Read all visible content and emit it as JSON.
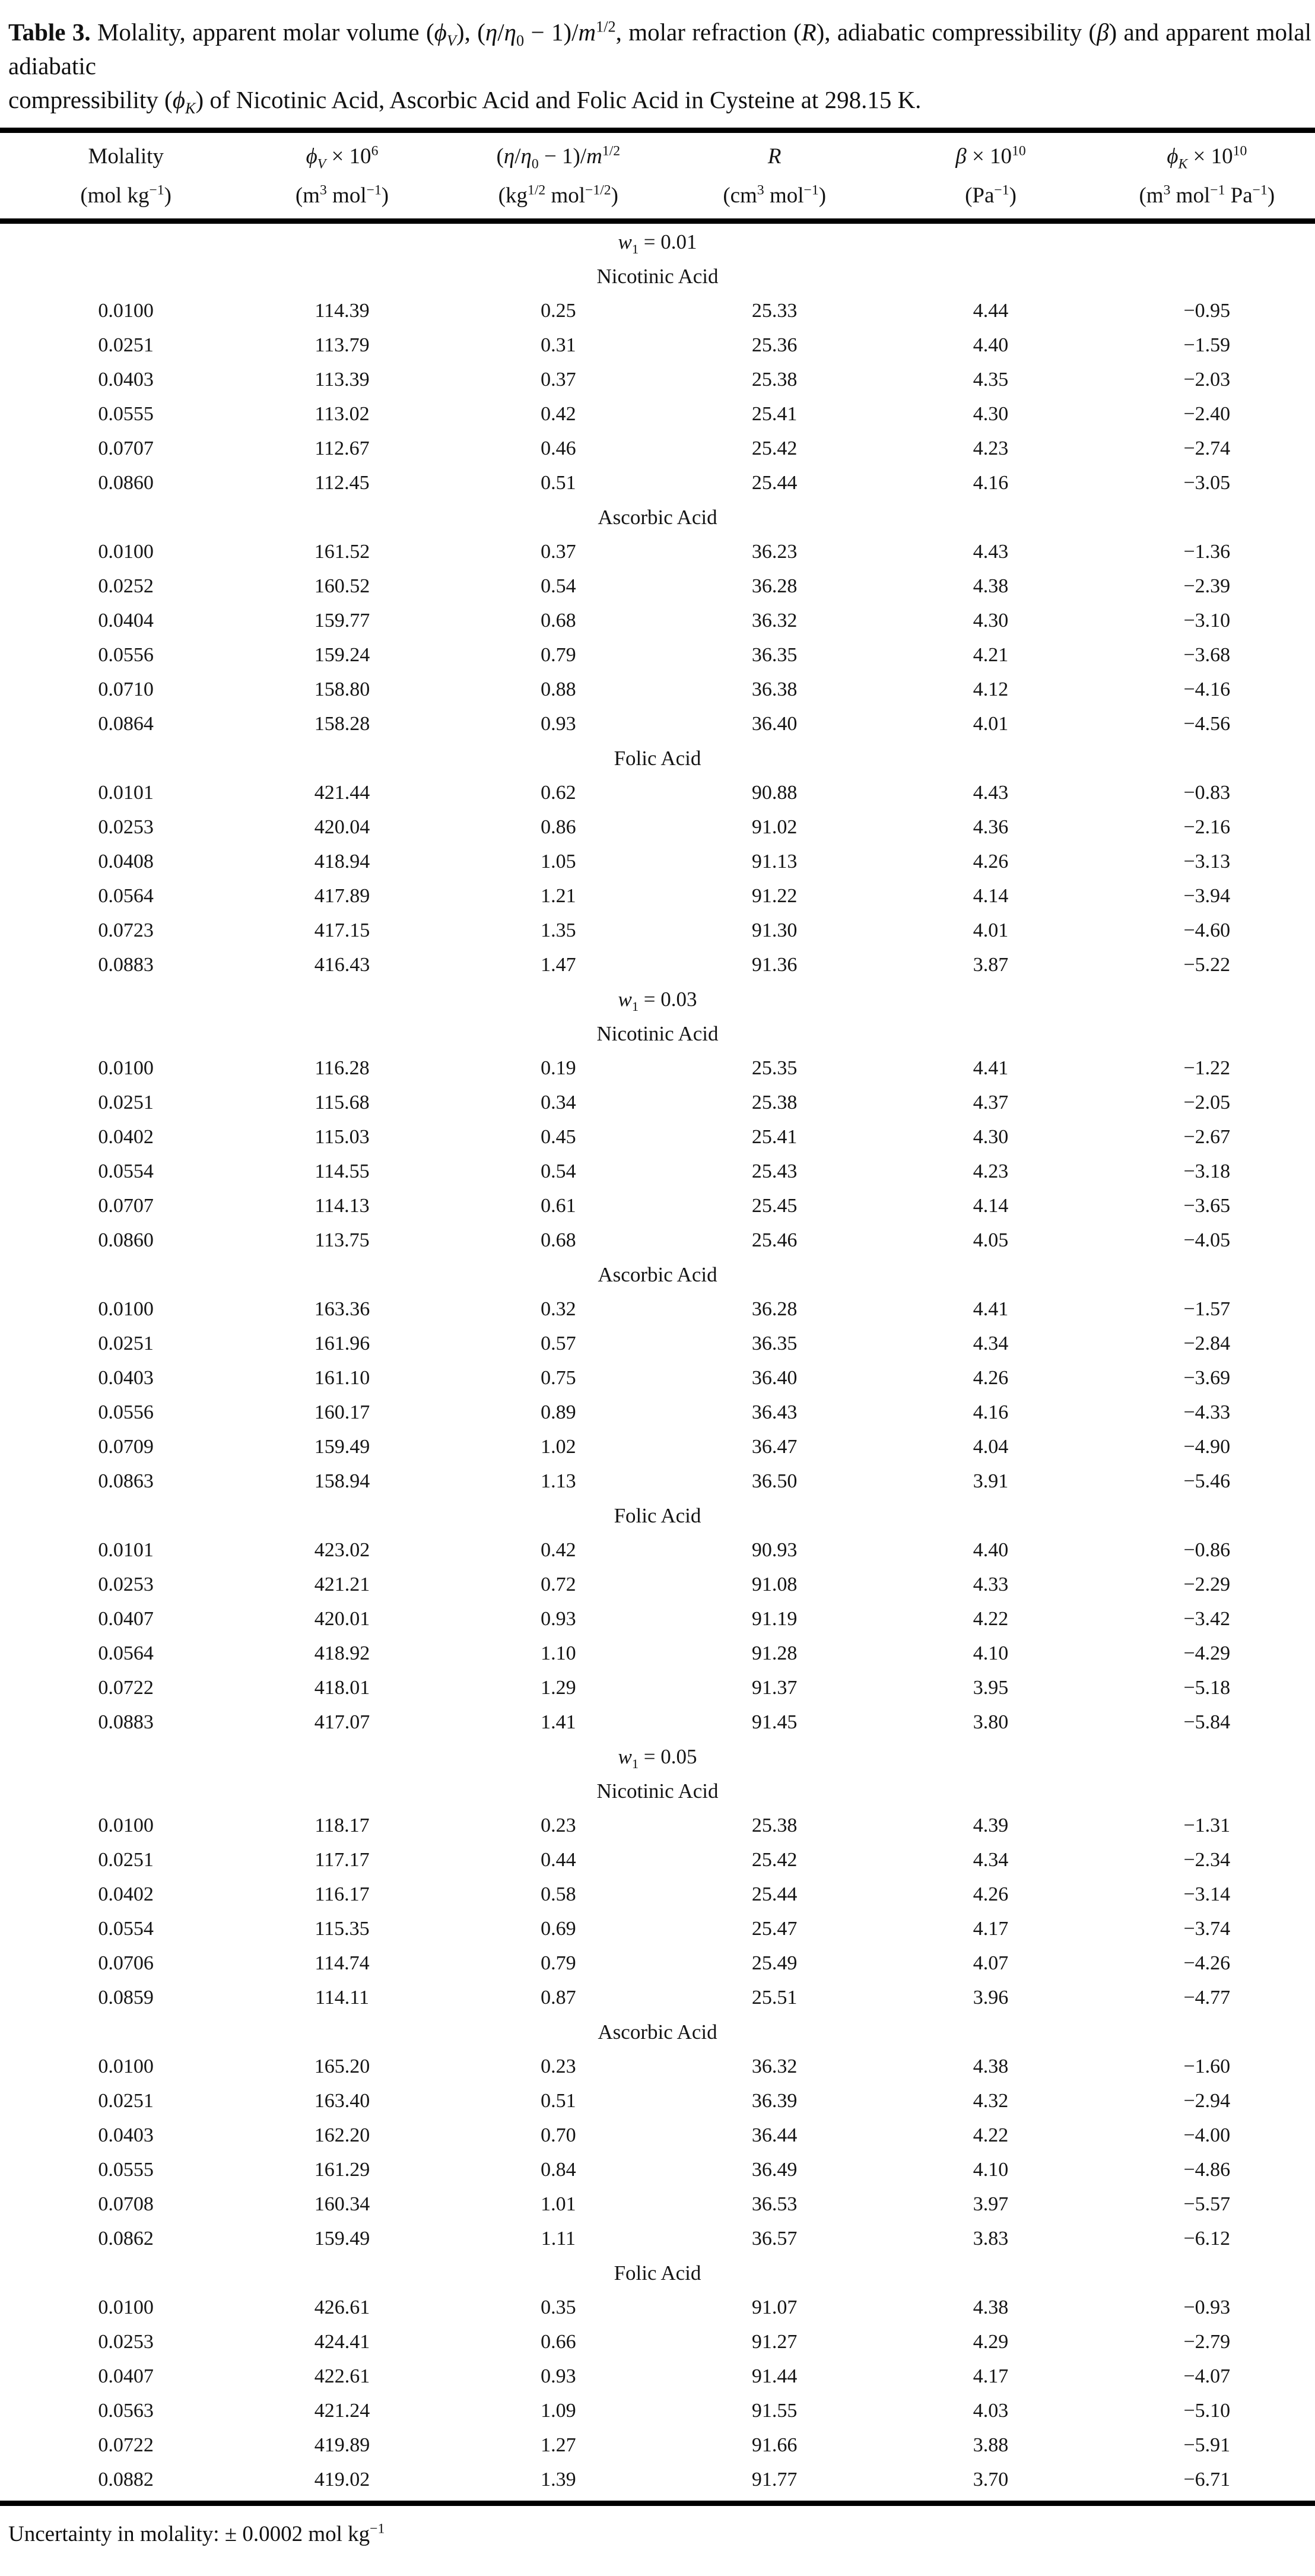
{
  "page": {
    "title_line1_html": "<b>Table 3.</b> Molality, apparent molar volume (<i>ϕ<sub>V</sub></i>), (<i>η</i>/<i>η</i><sub>0</sub> − 1)/<i>m</i><sup>1/2</sup>, molar refraction (<i>R</i>), adiabatic compressibility (<i>β</i>) and apparent molal adiabatic",
    "title_line2_html": "compressibility (<i>ϕ<sub>K</sub></i>) of Nicotinic Acid, Ascorbic Acid and Folic Acid in Cysteine at 298.15 K.",
    "footer_html": "Uncertainty in molality: ± 0.0002 mol kg<sup>−1</sup>"
  },
  "columns": [
    {
      "name_html": "Molality",
      "unit_html": "(mol kg<sup>−1</sup>)"
    },
    {
      "name_html": "<i>ϕ<sub>V</sub></i> × 10<sup>6</sup>",
      "unit_html": "(m<sup>3</sup> mol<sup>−1</sup>)"
    },
    {
      "name_html": "(<i>η</i>/<i>η</i><sub>0</sub> − 1)/<i>m</i><sup>1/2</sup>",
      "unit_html": "(kg<sup>1/2</sup> mol<sup>−1/2</sup>)"
    },
    {
      "name_html": "<i>R</i>",
      "unit_html": "(cm<sup>3</sup> mol<sup>−1</sup>)"
    },
    {
      "name_html": "<i>β</i> × 10<sup>10</sup>",
      "unit_html": "(Pa<sup>−1</sup>)"
    },
    {
      "name_html": "<i>ϕ<sub>K</sub></i> × 10<sup>10</sup>",
      "unit_html": "(m<sup>3</sup> mol<sup>−1</sup> Pa<sup>−1</sup>)"
    }
  ],
  "sections": [
    {
      "w_label_html": "<i>w</i><sub>1</sub> = 0.01",
      "groups": [
        {
          "name": "Nicotinic Acid",
          "rows": [
            [
              "0.0100",
              "114.39",
              "0.25",
              "25.33",
              "4.44",
              "−0.95"
            ],
            [
              "0.0251",
              "113.79",
              "0.31",
              "25.36",
              "4.40",
              "−1.59"
            ],
            [
              "0.0403",
              "113.39",
              "0.37",
              "25.38",
              "4.35",
              "−2.03"
            ],
            [
              "0.0555",
              "113.02",
              "0.42",
              "25.41",
              "4.30",
              "−2.40"
            ],
            [
              "0.0707",
              "112.67",
              "0.46",
              "25.42",
              "4.23",
              "−2.74"
            ],
            [
              "0.0860",
              "112.45",
              "0.51",
              "25.44",
              "4.16",
              "−3.05"
            ]
          ]
        },
        {
          "name": "Ascorbic Acid",
          "rows": [
            [
              "0.0100",
              "161.52",
              "0.37",
              "36.23",
              "4.43",
              "−1.36"
            ],
            [
              "0.0252",
              "160.52",
              "0.54",
              "36.28",
              "4.38",
              "−2.39"
            ],
            [
              "0.0404",
              "159.77",
              "0.68",
              "36.32",
              "4.30",
              "−3.10"
            ],
            [
              "0.0556",
              "159.24",
              "0.79",
              "36.35",
              "4.21",
              "−3.68"
            ],
            [
              "0.0710",
              "158.80",
              "0.88",
              "36.38",
              "4.12",
              "−4.16"
            ],
            [
              "0.0864",
              "158.28",
              "0.93",
              "36.40",
              "4.01",
              "−4.56"
            ]
          ]
        },
        {
          "name": "Folic Acid",
          "rows": [
            [
              "0.0101",
              "421.44",
              "0.62",
              "90.88",
              "4.43",
              "−0.83"
            ],
            [
              "0.0253",
              "420.04",
              "0.86",
              "91.02",
              "4.36",
              "−2.16"
            ],
            [
              "0.0408",
              "418.94",
              "1.05",
              "91.13",
              "4.26",
              "−3.13"
            ],
            [
              "0.0564",
              "417.89",
              "1.21",
              "91.22",
              "4.14",
              "−3.94"
            ],
            [
              "0.0723",
              "417.15",
              "1.35",
              "91.30",
              "4.01",
              "−4.60"
            ],
            [
              "0.0883",
              "416.43",
              "1.47",
              "91.36",
              "3.87",
              "−5.22"
            ]
          ]
        }
      ]
    },
    {
      "w_label_html": "<i>w</i><sub>1</sub> = 0.03",
      "groups": [
        {
          "name": "Nicotinic Acid",
          "rows": [
            [
              "0.0100",
              "116.28",
              "0.19",
              "25.35",
              "4.41",
              "−1.22"
            ],
            [
              "0.0251",
              "115.68",
              "0.34",
              "25.38",
              "4.37",
              "−2.05"
            ],
            [
              "0.0402",
              "115.03",
              "0.45",
              "25.41",
              "4.30",
              "−2.67"
            ],
            [
              "0.0554",
              "114.55",
              "0.54",
              "25.43",
              "4.23",
              "−3.18"
            ],
            [
              "0.0707",
              "114.13",
              "0.61",
              "25.45",
              "4.14",
              "−3.65"
            ],
            [
              "0.0860",
              "113.75",
              "0.68",
              "25.46",
              "4.05",
              "−4.05"
            ]
          ]
        },
        {
          "name": "Ascorbic Acid",
          "rows": [
            [
              "0.0100",
              "163.36",
              "0.32",
              "36.28",
              "4.41",
              "−1.57"
            ],
            [
              "0.0251",
              "161.96",
              "0.57",
              "36.35",
              "4.34",
              "−2.84"
            ],
            [
              "0.0403",
              "161.10",
              "0.75",
              "36.40",
              "4.26",
              "−3.69"
            ],
            [
              "0.0556",
              "160.17",
              "0.89",
              "36.43",
              "4.16",
              "−4.33"
            ],
            [
              "0.0709",
              "159.49",
              "1.02",
              "36.47",
              "4.04",
              "−4.90"
            ],
            [
              "0.0863",
              "158.94",
              "1.13",
              "36.50",
              "3.91",
              "−5.46"
            ]
          ]
        },
        {
          "name": "Folic Acid",
          "rows": [
            [
              "0.0101",
              "423.02",
              "0.42",
              "90.93",
              "4.40",
              "−0.86"
            ],
            [
              "0.0253",
              "421.21",
              "0.72",
              "91.08",
              "4.33",
              "−2.29"
            ],
            [
              "0.0407",
              "420.01",
              "0.93",
              "91.19",
              "4.22",
              "−3.42"
            ],
            [
              "0.0564",
              "418.92",
              "1.10",
              "91.28",
              "4.10",
              "−4.29"
            ],
            [
              "0.0722",
              "418.01",
              "1.29",
              "91.37",
              "3.95",
              "−5.18"
            ],
            [
              "0.0883",
              "417.07",
              "1.41",
              "91.45",
              "3.80",
              "−5.84"
            ]
          ]
        }
      ]
    },
    {
      "w_label_html": "<i>w</i><sub>1</sub> = 0.05",
      "groups": [
        {
          "name": "Nicotinic Acid",
          "rows": [
            [
              "0.0100",
              "118.17",
              "0.23",
              "25.38",
              "4.39",
              "−1.31"
            ],
            [
              "0.0251",
              "117.17",
              "0.44",
              "25.42",
              "4.34",
              "−2.34"
            ],
            [
              "0.0402",
              "116.17",
              "0.58",
              "25.44",
              "4.26",
              "−3.14"
            ],
            [
              "0.0554",
              "115.35",
              "0.69",
              "25.47",
              "4.17",
              "−3.74"
            ],
            [
              "0.0706",
              "114.74",
              "0.79",
              "25.49",
              "4.07",
              "−4.26"
            ],
            [
              "0.0859",
              "114.11",
              "0.87",
              "25.51",
              "3.96",
              "−4.77"
            ]
          ]
        },
        {
          "name": "Ascorbic Acid",
          "rows": [
            [
              "0.0100",
              "165.20",
              "0.23",
              "36.32",
              "4.38",
              "−1.60"
            ],
            [
              "0.0251",
              "163.40",
              "0.51",
              "36.39",
              "4.32",
              "−2.94"
            ],
            [
              "0.0403",
              "162.20",
              "0.70",
              "36.44",
              "4.22",
              "−4.00"
            ],
            [
              "0.0555",
              "161.29",
              "0.84",
              "36.49",
              "4.10",
              "−4.86"
            ],
            [
              "0.0708",
              "160.34",
              "1.01",
              "36.53",
              "3.97",
              "−5.57"
            ],
            [
              "0.0862",
              "159.49",
              "1.11",
              "36.57",
              "3.83",
              "−6.12"
            ]
          ]
        },
        {
          "name": "Folic Acid",
          "rows": [
            [
              "0.0100",
              "426.61",
              "0.35",
              "91.07",
              "4.38",
              "−0.93"
            ],
            [
              "0.0253",
              "424.41",
              "0.66",
              "91.27",
              "4.29",
              "−2.79"
            ],
            [
              "0.0407",
              "422.61",
              "0.93",
              "91.44",
              "4.17",
              "−4.07"
            ],
            [
              "0.0563",
              "421.24",
              "1.09",
              "91.55",
              "4.03",
              "−5.10"
            ],
            [
              "0.0722",
              "419.89",
              "1.27",
              "91.66",
              "3.88",
              "−5.91"
            ],
            [
              "0.0882",
              "419.02",
              "1.39",
              "91.77",
              "3.70",
              "−6.71"
            ]
          ]
        }
      ]
    }
  ]
}
